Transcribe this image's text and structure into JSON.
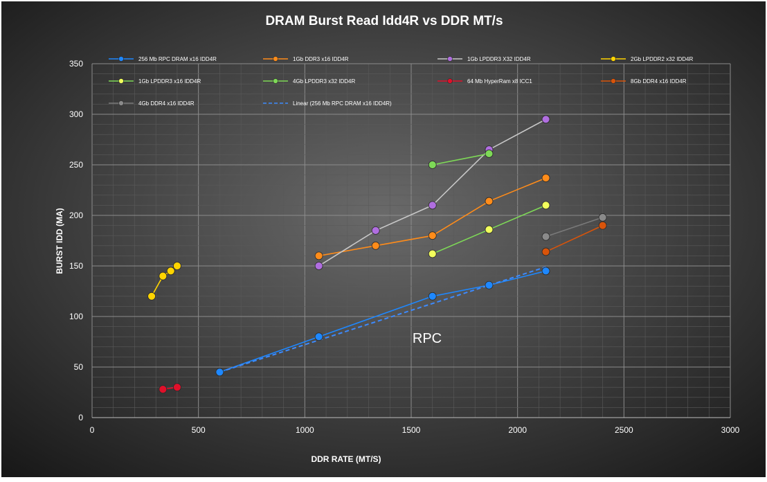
{
  "chart_data": {
    "type": "scatter",
    "title": "DRAM Burst Read Idd4R vs DDR MT/s",
    "xlabel": "DDR RATE (MT/S)",
    "ylabel": "BURST IDD (MA)",
    "xlim": [
      0,
      3000
    ],
    "ylim": [
      0,
      350
    ],
    "x_ticks": [
      0,
      500,
      1000,
      1500,
      2000,
      2500,
      3000
    ],
    "y_ticks": [
      0,
      50,
      100,
      150,
      200,
      250,
      300,
      350
    ],
    "grid": true,
    "legend_position": "top",
    "annotation": "RPC",
    "series": [
      {
        "name": "256 Mb RPC DRAM x16 IDD4R",
        "color": "#1e88ff",
        "fill": "#1e88ff",
        "points": [
          [
            600,
            45
          ],
          [
            1066,
            80
          ],
          [
            1600,
            120
          ],
          [
            1866,
            131
          ],
          [
            2133,
            145
          ]
        ]
      },
      {
        "name": "1Gb DDR3 x16 IDD4R",
        "color": "#ff8c1a",
        "fill": "#ff8c1a",
        "points": [
          [
            1066,
            160
          ],
          [
            1333,
            170
          ],
          [
            1600,
            180
          ],
          [
            1866,
            214
          ],
          [
            2133,
            237
          ]
        ]
      },
      {
        "name": "1Gb LPDDR3 X32 IDD4R",
        "color": "#c8c8c8",
        "fill": "#b06ee0",
        "points": [
          [
            1066,
            150
          ],
          [
            1333,
            185
          ],
          [
            1600,
            210
          ],
          [
            1866,
            265
          ],
          [
            2133,
            295
          ]
        ]
      },
      {
        "name": "2Gb LPDDR2 x32 IDD4R",
        "color": "#ffd400",
        "fill": "#ffd400",
        "points": [
          [
            280,
            120
          ],
          [
            333,
            140
          ],
          [
            370,
            145
          ],
          [
            400,
            150
          ]
        ]
      },
      {
        "name": "1Gb LPDDR3 x16 IDD4R",
        "color": "#7ed957",
        "fill": "#f2ff5c",
        "points": [
          [
            1600,
            162
          ],
          [
            1866,
            186
          ],
          [
            2133,
            210
          ]
        ]
      },
      {
        "name": "4Gb LPDDR3 x32 IDD4R",
        "color": "#7ed957",
        "fill": "#7ed957",
        "points": [
          [
            1600,
            250
          ],
          [
            1866,
            261
          ]
        ]
      },
      {
        "name": "64 Mb HyperRam x8 ICC1",
        "color": "#e0102a",
        "fill": "#e0102a",
        "points": [
          [
            333,
            28
          ],
          [
            400,
            30
          ]
        ]
      },
      {
        "name": "8Gb DDR4 x16 IDD4R",
        "color": "#d9540a",
        "fill": "#d9540a",
        "points": [
          [
            2133,
            164
          ],
          [
            2400,
            190
          ]
        ]
      },
      {
        "name": "4Gb DDR4 x16 IDD4R",
        "color": "#7a7a7a",
        "fill": "#8a8a8a",
        "points": [
          [
            2133,
            179
          ],
          [
            2400,
            198
          ]
        ]
      }
    ],
    "trendline": {
      "name": "Linear (256 Mb RPC DRAM x16 IDD4R)",
      "color": "#3d8bff",
      "points": [
        [
          600,
          45
        ],
        [
          2133,
          149
        ]
      ]
    }
  }
}
